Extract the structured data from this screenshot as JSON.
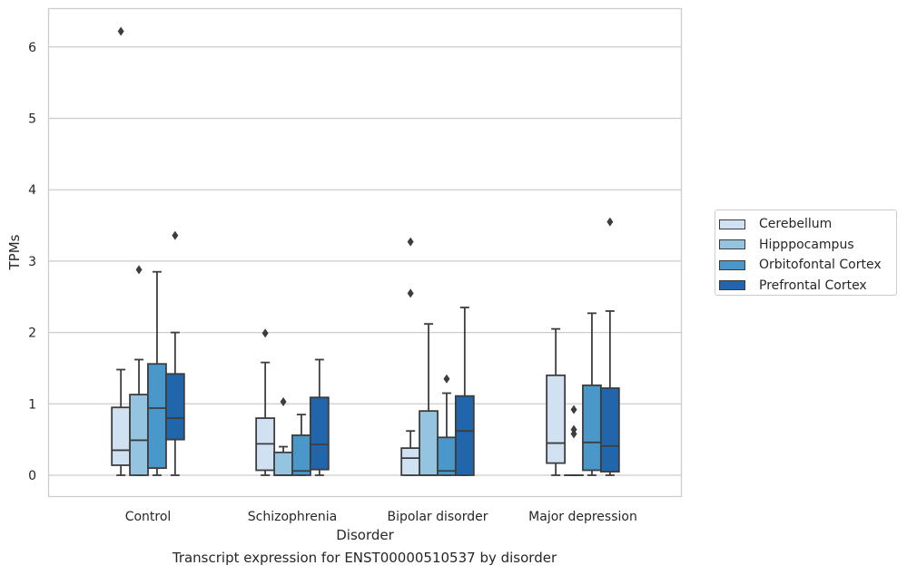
{
  "chart_data": {
    "type": "box",
    "title": "",
    "xlabel": "Disorder",
    "ylabel": "TPMs",
    "ylim": [
      -0.3,
      6.5
    ],
    "yticks": [
      "0",
      "1",
      "2",
      "3",
      "4",
      "5",
      "6"
    ],
    "categories": [
      "Control",
      "Schizophrenia",
      "Bipolar disorder",
      "Major depression"
    ],
    "grid": "horizontal",
    "legend_position": "right",
    "series": [
      {
        "name": "Cerebellum",
        "color": "#d0e1f2",
        "boxes": [
          {
            "whislo": 0.0,
            "q1": 0.14,
            "med": 0.35,
            "q3": 0.95,
            "whishi": 1.48,
            "fliers": [
              6.22
            ]
          },
          {
            "whislo": 0.0,
            "q1": 0.07,
            "med": 0.44,
            "q3": 0.8,
            "whishi": 1.58,
            "fliers": [
              1.99
            ]
          },
          {
            "whislo": 0.0,
            "q1": 0.0,
            "med": 0.24,
            "q3": 0.38,
            "whishi": 0.62,
            "fliers": [
              2.55,
              3.27
            ]
          },
          {
            "whislo": 0.0,
            "q1": 0.17,
            "med": 0.45,
            "q3": 1.4,
            "whishi": 2.05,
            "fliers": []
          }
        ]
      },
      {
        "name": "Hipppocampus",
        "color": "#94c4df",
        "boxes": [
          {
            "whislo": 0.0,
            "q1": 0.0,
            "med": 0.49,
            "q3": 1.13,
            "whishi": 1.62,
            "fliers": [
              2.88
            ]
          },
          {
            "whislo": 0.0,
            "q1": 0.0,
            "med": 0.0,
            "q3": 0.32,
            "whishi": 0.4,
            "fliers": [
              1.03
            ]
          },
          {
            "whislo": 0.0,
            "q1": 0.0,
            "med": 0.0,
            "q3": 0.9,
            "whishi": 2.12,
            "fliers": []
          },
          {
            "whislo": 0.0,
            "q1": 0.0,
            "med": 0.0,
            "q3": 0.0,
            "whishi": 0.0,
            "fliers": [
              0.58,
              0.64,
              0.92
            ]
          }
        ]
      },
      {
        "name": "Orbitofontal Cortex",
        "color": "#4a98c9",
        "boxes": [
          {
            "whislo": 0.0,
            "q1": 0.1,
            "med": 0.94,
            "q3": 1.56,
            "whishi": 2.85,
            "fliers": []
          },
          {
            "whislo": 0.0,
            "q1": 0.0,
            "med": 0.06,
            "q3": 0.56,
            "whishi": 0.85,
            "fliers": []
          },
          {
            "whislo": 0.0,
            "q1": 0.0,
            "med": 0.06,
            "q3": 0.53,
            "whishi": 1.15,
            "fliers": [
              1.35
            ]
          },
          {
            "whislo": 0.0,
            "q1": 0.07,
            "med": 0.46,
            "q3": 1.26,
            "whishi": 2.27,
            "fliers": []
          }
        ]
      },
      {
        "name": "Prefrontal Cortex",
        "color": "#2165ab",
        "boxes": [
          {
            "whislo": 0.0,
            "q1": 0.5,
            "med": 0.8,
            "q3": 1.42,
            "whishi": 2.0,
            "fliers": [
              3.36
            ]
          },
          {
            "whislo": 0.0,
            "q1": 0.08,
            "med": 0.43,
            "q3": 1.09,
            "whishi": 1.62,
            "fliers": []
          },
          {
            "whislo": 0.0,
            "q1": 0.0,
            "med": 0.62,
            "q3": 1.11,
            "whishi": 2.35,
            "fliers": []
          },
          {
            "whislo": 0.0,
            "q1": 0.05,
            "med": 0.41,
            "q3": 1.22,
            "whishi": 2.3,
            "fliers": [
              3.55
            ]
          }
        ]
      }
    ]
  },
  "caption": "Transcript expression for ENST00000510537 by disorder"
}
